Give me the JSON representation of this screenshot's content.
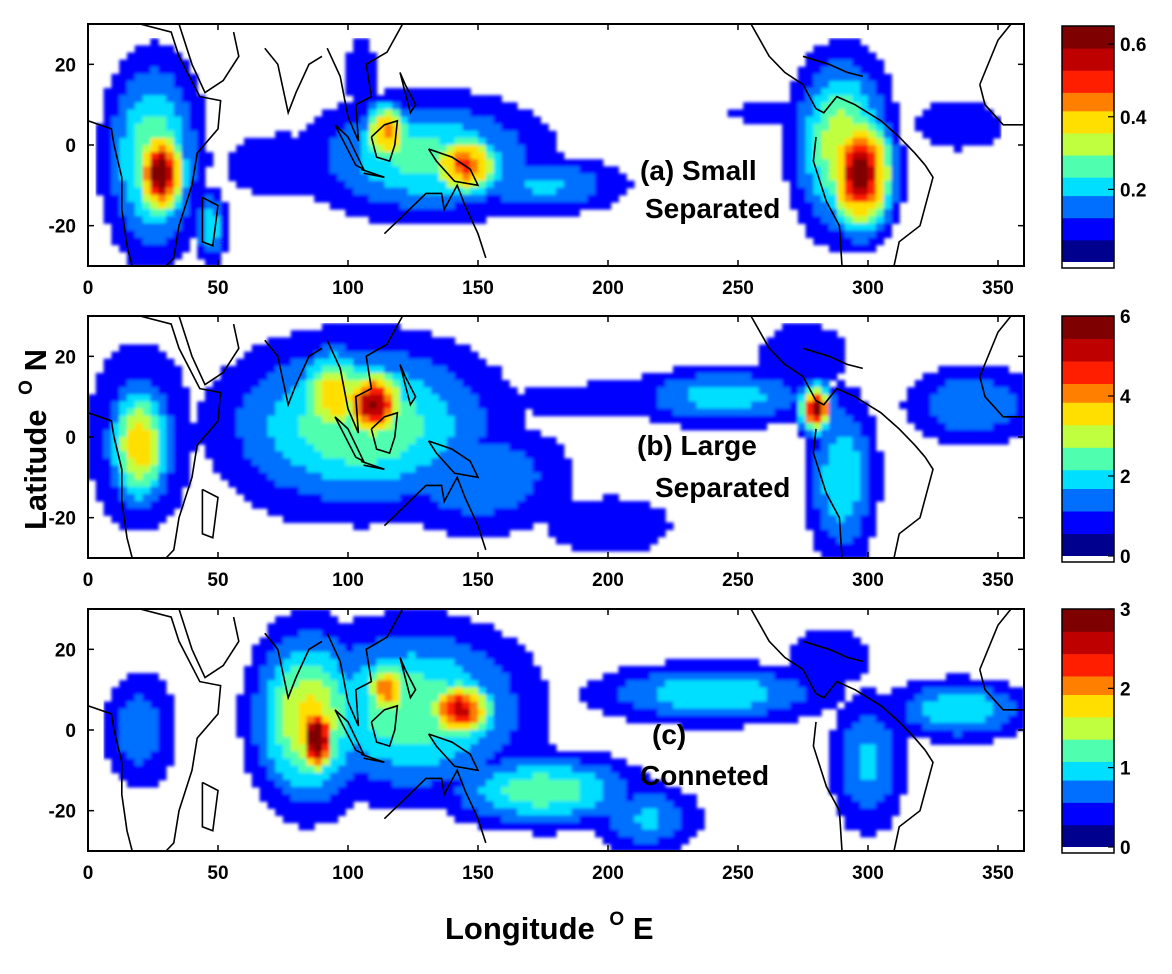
{
  "figure": {
    "xlabel": "Longitude",
    "xlabel_unit": "E",
    "xlabel_sup": "O",
    "ylabel": "Latitude",
    "ylabel_unit": "N",
    "ylabel_sup": "O"
  },
  "chart_data": [
    {
      "type": "heatmap",
      "annotation_line1": "(a) Small",
      "annotation_line2": "Separated",
      "xlim": [
        0,
        360
      ],
      "ylim": [
        -30,
        30
      ],
      "xticks": [
        0,
        50,
        100,
        150,
        200,
        250,
        300,
        350
      ],
      "yticks": [
        -20,
        0,
        20
      ],
      "colorbar": {
        "min": 0,
        "max": 0.65,
        "ticks": [
          0.2,
          0.4,
          0.6
        ]
      },
      "levels": [
        0.05,
        0.1,
        0.15,
        0.2,
        0.25,
        0.3,
        0.35,
        0.4,
        0.45,
        0.5,
        0.55,
        0.6
      ],
      "centers": [
        {
          "lon": 28,
          "lat": -7,
          "value": 0.62,
          "sx": 6,
          "sy": 7
        },
        {
          "lon": 25,
          "lat": -3,
          "value": 0.25,
          "sx": 12,
          "sy": 16
        },
        {
          "lon": 47,
          "lat": -20,
          "value": 0.2,
          "sx": 4,
          "sy": 6
        },
        {
          "lon": 115,
          "lat": 3,
          "value": 0.42,
          "sx": 6,
          "sy": 5
        },
        {
          "lon": 145,
          "lat": -5,
          "value": 0.48,
          "sx": 9,
          "sy": 5
        },
        {
          "lon": 130,
          "lat": -3,
          "value": 0.22,
          "sx": 30,
          "sy": 10
        },
        {
          "lon": 175,
          "lat": -10,
          "value": 0.16,
          "sx": 22,
          "sy": 5
        },
        {
          "lon": 75,
          "lat": -5,
          "value": 0.08,
          "sx": 22,
          "sy": 8
        },
        {
          "lon": 105,
          "lat": 18,
          "value": 0.08,
          "sx": 6,
          "sy": 9
        },
        {
          "lon": 297,
          "lat": -7,
          "value": 0.6,
          "sx": 8,
          "sy": 9
        },
        {
          "lon": 290,
          "lat": 0,
          "value": 0.3,
          "sx": 12,
          "sy": 14
        },
        {
          "lon": 265,
          "lat": 8,
          "value": 0.06,
          "sx": 30,
          "sy": 4
        },
        {
          "lon": 335,
          "lat": 5,
          "value": 0.1,
          "sx": 14,
          "sy": 5
        },
        {
          "lon": 220,
          "lat": 8,
          "value": 0.04,
          "sx": 50,
          "sy": 4
        }
      ]
    },
    {
      "type": "heatmap",
      "annotation_line1": "(b) Large",
      "annotation_line2": "Separated",
      "xlim": [
        0,
        360
      ],
      "ylim": [
        -30,
        30
      ],
      "xticks": [
        0,
        50,
        100,
        150,
        200,
        250,
        300,
        350
      ],
      "yticks": [
        -20,
        0,
        20
      ],
      "colorbar": {
        "min": 0,
        "max": 6,
        "ticks": [
          0,
          2,
          4,
          6
        ]
      },
      "levels": [
        0.5,
        1,
        1.5,
        2,
        2.5,
        3,
        3.5,
        4,
        4.5,
        5,
        5.5
      ],
      "centers": [
        {
          "lon": 20,
          "lat": -2,
          "value": 3.5,
          "sx": 8,
          "sy": 10
        },
        {
          "lon": 20,
          "lat": 0,
          "value": 1.5,
          "sx": 14,
          "sy": 16
        },
        {
          "lon": 110,
          "lat": 8,
          "value": 5.2,
          "sx": 8,
          "sy": 6
        },
        {
          "lon": 95,
          "lat": 10,
          "value": 3.5,
          "sx": 10,
          "sy": 8
        },
        {
          "lon": 105,
          "lat": 3,
          "value": 2.5,
          "sx": 35,
          "sy": 14
        },
        {
          "lon": 150,
          "lat": -10,
          "value": 1.5,
          "sx": 25,
          "sy": 10
        },
        {
          "lon": 200,
          "lat": -22,
          "value": 1.0,
          "sx": 20,
          "sy": 6
        },
        {
          "lon": 80,
          "lat": 0,
          "value": 1.5,
          "sx": 18,
          "sy": 14
        },
        {
          "lon": 280,
          "lat": 7,
          "value": 5.3,
          "sx": 4,
          "sy": 4
        },
        {
          "lon": 290,
          "lat": -10,
          "value": 2.0,
          "sx": 9,
          "sy": 14
        },
        {
          "lon": 245,
          "lat": 10,
          "value": 1.8,
          "sx": 25,
          "sy": 5
        },
        {
          "lon": 200,
          "lat": 9,
          "value": 0.9,
          "sx": 35,
          "sy": 4
        },
        {
          "lon": 340,
          "lat": 8,
          "value": 1.5,
          "sx": 18,
          "sy": 7
        },
        {
          "lon": 275,
          "lat": 20,
          "value": 1.0,
          "sx": 14,
          "sy": 7
        }
      ]
    },
    {
      "type": "heatmap",
      "annotation_line1": "(c)",
      "annotation_line2": "Conneted",
      "xlim": [
        0,
        360
      ],
      "ylim": [
        -30,
        30
      ],
      "xticks": [
        0,
        50,
        100,
        150,
        200,
        250,
        300,
        350
      ],
      "yticks": [
        -20,
        0,
        20
      ],
      "colorbar": {
        "min": 0,
        "max": 3,
        "ticks": [
          0,
          1,
          2,
          3
        ]
      },
      "levels": [
        0.25,
        0.5,
        0.75,
        1,
        1.25,
        1.5,
        1.75,
        2,
        2.25,
        2.5,
        2.75
      ],
      "centers": [
        {
          "lon": 88,
          "lat": -2,
          "value": 2.9,
          "sx": 5,
          "sy": 6
        },
        {
          "lon": 85,
          "lat": 3,
          "value": 1.6,
          "sx": 14,
          "sy": 14
        },
        {
          "lon": 143,
          "lat": 5,
          "value": 2.4,
          "sx": 9,
          "sy": 5
        },
        {
          "lon": 115,
          "lat": 10,
          "value": 2.0,
          "sx": 6,
          "sy": 5
        },
        {
          "lon": 125,
          "lat": 5,
          "value": 1.2,
          "sx": 30,
          "sy": 14
        },
        {
          "lon": 175,
          "lat": -15,
          "value": 1.2,
          "sx": 25,
          "sy": 6
        },
        {
          "lon": 215,
          "lat": -22,
          "value": 0.8,
          "sx": 14,
          "sy": 6
        },
        {
          "lon": 20,
          "lat": 0,
          "value": 0.7,
          "sx": 10,
          "sy": 10
        },
        {
          "lon": 240,
          "lat": 9,
          "value": 1.0,
          "sx": 30,
          "sy": 5
        },
        {
          "lon": 300,
          "lat": -8,
          "value": 0.8,
          "sx": 10,
          "sy": 12
        },
        {
          "lon": 335,
          "lat": 5,
          "value": 1.0,
          "sx": 18,
          "sy": 5
        },
        {
          "lon": 285,
          "lat": 18,
          "value": 0.5,
          "sx": 14,
          "sy": 6
        }
      ]
    }
  ],
  "colors": {
    "jet": [
      "#00008f",
      "#0000ff",
      "#006fff",
      "#00dfff",
      "#4fffaf",
      "#bfff3f",
      "#ffdf00",
      "#ff7f00",
      "#ff1f00",
      "#bf0000",
      "#7f0000"
    ],
    "coastline": "#000000",
    "frame": "#000000"
  }
}
